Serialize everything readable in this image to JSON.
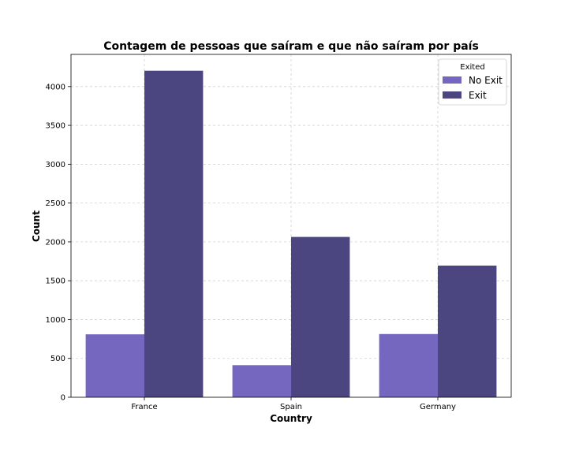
{
  "chart_data": {
    "type": "bar",
    "title": "Contagem de pessoas que saíram e que não saíram por país",
    "xlabel": "Country",
    "ylabel": "Count",
    "categories": [
      "France",
      "Spain",
      "Germany"
    ],
    "series": [
      {
        "name": "No Exit",
        "values": [
          810,
          413,
          814
        ],
        "color": "#7566c0"
      },
      {
        "name": "Exit",
        "values": [
          4204,
          2064,
          1695
        ],
        "color": "#4b4580"
      }
    ],
    "ylim": [
      0,
      4414
    ],
    "yticks": [
      0,
      500,
      1000,
      1500,
      2000,
      2500,
      3000,
      3500,
      4000
    ],
    "grid": true,
    "legend": {
      "title": "Exited",
      "placement": "top-right"
    }
  }
}
